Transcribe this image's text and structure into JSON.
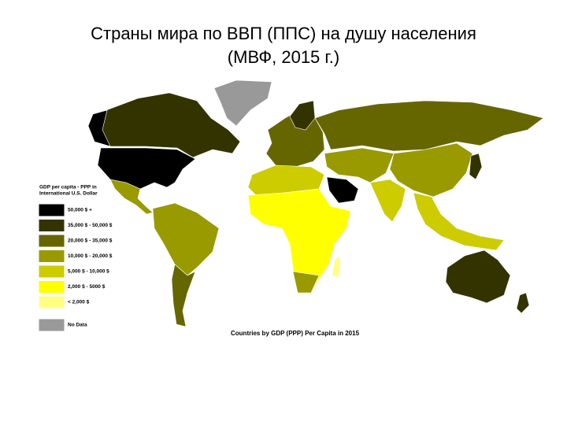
{
  "title": [
    "Страны мира по ВВП (ППС) на душу населения",
    "(МВФ, 2015 г.)"
  ],
  "legend": {
    "title": [
      "GDP per capita - PPP in",
      "International U.S. Dollar"
    ],
    "items": [
      {
        "label": "50,000 $ +",
        "color": "#000000"
      },
      {
        "label": "35,000 $ - 50,000 $",
        "color": "#333300"
      },
      {
        "label": "20,000 $ - 35,000 $",
        "color": "#666600"
      },
      {
        "label": "10,000 $ - 20,000 $",
        "color": "#999900"
      },
      {
        "label": "5,000 $ - 10,000 $",
        "color": "#cccc00"
      },
      {
        "label": "2,000 $ - 5000 $",
        "color": "#ffff00"
      },
      {
        "label": "< 2,000 $",
        "color": "#ffff80"
      },
      {
        "label": "No Data",
        "color": "#999999"
      }
    ]
  },
  "caption": "Countries by GDP (PPP) Per Capita in 2015"
}
